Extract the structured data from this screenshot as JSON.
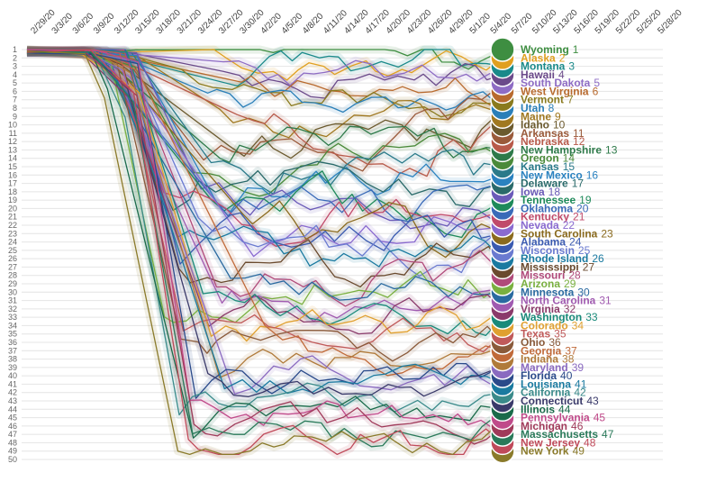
{
  "chart_data": {
    "type": "line",
    "title": "",
    "xlabel": "",
    "ylabel": "",
    "ylim": [
      1,
      50
    ],
    "x_ticks": [
      "2/29/20",
      "3/3/20",
      "3/6/20",
      "3/9/20",
      "3/12/20",
      "3/15/20",
      "3/18/20",
      "3/21/20",
      "3/24/20",
      "3/27/20",
      "3/30/20",
      "4/2/20",
      "4/5/20",
      "4/8/20",
      "4/11/20",
      "4/14/20",
      "4/17/20",
      "4/20/20",
      "4/23/20",
      "4/26/20",
      "4/29/20",
      "5/1/20",
      "5/4/20",
      "5/7/20",
      "5/10/20",
      "5/13/20",
      "5/16/20",
      "5/19/20",
      "5/22/20",
      "5/25/20",
      "5/28/20"
    ],
    "y_ticks": [
      1,
      2,
      3,
      4,
      5,
      6,
      7,
      8,
      9,
      10,
      11,
      12,
      13,
      14,
      15,
      16,
      17,
      18,
      19,
      20,
      21,
      22,
      23,
      24,
      25,
      26,
      27,
      28,
      29,
      30,
      31,
      32,
      33,
      34,
      35,
      36,
      37,
      38,
      39,
      40,
      41,
      42,
      43,
      44,
      45,
      46,
      47,
      48,
      49,
      50
    ],
    "series": [
      {
        "name": "Wyoming",
        "rank": 1,
        "color": "#3e8e41"
      },
      {
        "name": "Alaska",
        "rank": 2,
        "color": "#e0a020"
      },
      {
        "name": "Montana",
        "rank": 3,
        "color": "#1a8a8a"
      },
      {
        "name": "Hawaii",
        "rank": 4,
        "color": "#6b4a8a"
      },
      {
        "name": "South Dakota",
        "rank": 5,
        "color": "#8e6cc4"
      },
      {
        "name": "West Virginia",
        "rank": 6,
        "color": "#b86a2e"
      },
      {
        "name": "Vermont",
        "rank": 7,
        "color": "#8a7a1e"
      },
      {
        "name": "Utah",
        "rank": 8,
        "color": "#2a7fb8"
      },
      {
        "name": "Maine",
        "rank": 9,
        "color": "#a07820"
      },
      {
        "name": "Idaho",
        "rank": 10,
        "color": "#6b5a2e"
      },
      {
        "name": "Arkansas",
        "rank": 11,
        "color": "#9a5a3a"
      },
      {
        "name": "Nebraska",
        "rank": 12,
        "color": "#b85a4a"
      },
      {
        "name": "New Hampshire",
        "rank": 13,
        "color": "#2e7a4a"
      },
      {
        "name": "Oregon",
        "rank": 14,
        "color": "#4a8a3a"
      },
      {
        "name": "Kansas",
        "rank": 15,
        "color": "#2a7a8a"
      },
      {
        "name": "New Mexico",
        "rank": 16,
        "color": "#2a82c0"
      },
      {
        "name": "Delaware",
        "rank": 17,
        "color": "#2a6a6a"
      },
      {
        "name": "Iowa",
        "rank": 18,
        "color": "#6a5ab8"
      },
      {
        "name": "Tennessee",
        "rank": 19,
        "color": "#1e8a5a"
      },
      {
        "name": "Oklahoma",
        "rank": 20,
        "color": "#3a6ab8"
      },
      {
        "name": "Kentucky",
        "rank": 21,
        "color": "#c04a6a"
      },
      {
        "name": "Nevada",
        "rank": 22,
        "color": "#8a6ad0"
      },
      {
        "name": "South Carolina",
        "rank": 23,
        "color": "#8a6a1e"
      },
      {
        "name": "Alabama",
        "rank": 24,
        "color": "#3a5ab0"
      },
      {
        "name": "Wisconsin",
        "rank": 25,
        "color": "#6a7ad0"
      },
      {
        "name": "Rhode Island",
        "rank": 26,
        "color": "#1a7aa0"
      },
      {
        "name": "Mississippi",
        "rank": 27,
        "color": "#6a4a2e"
      },
      {
        "name": "Missouri",
        "rank": 28,
        "color": "#b04a7a"
      },
      {
        "name": "Arizona",
        "rank": 29,
        "color": "#7ab040"
      },
      {
        "name": "Minnesota",
        "rank": 30,
        "color": "#2a6aa0"
      },
      {
        "name": "North Carolina",
        "rank": 31,
        "color": "#a05ab0"
      },
      {
        "name": "Virginia",
        "rank": 32,
        "color": "#8a3a6a"
      },
      {
        "name": "Washington",
        "rank": 33,
        "color": "#1a8a7a"
      },
      {
        "name": "Colorado",
        "rank": 34,
        "color": "#e0a030"
      },
      {
        "name": "Texas",
        "rank": 35,
        "color": "#c05a5a"
      },
      {
        "name": "Ohio",
        "rank": 36,
        "color": "#8a5a3a"
      },
      {
        "name": "Georgia",
        "rank": 37,
        "color": "#c06a3a"
      },
      {
        "name": "Indiana",
        "rank": 38,
        "color": "#b07a3a"
      },
      {
        "name": "Maryland",
        "rank": 39,
        "color": "#8a6ac0"
      },
      {
        "name": "Florida",
        "rank": 40,
        "color": "#2a4a8a"
      },
      {
        "name": "Louisiana",
        "rank": 41,
        "color": "#1a7aa0"
      },
      {
        "name": "California",
        "rank": 42,
        "color": "#3a8a8a"
      },
      {
        "name": "Connecticut",
        "rank": 43,
        "color": "#3a3a6a"
      },
      {
        "name": "Illinois",
        "rank": 44,
        "color": "#1a6a4a"
      },
      {
        "name": "Pennsylvania",
        "rank": 45,
        "color": "#c04a8a"
      },
      {
        "name": "Michigan",
        "rank": 46,
        "color": "#a03a5a"
      },
      {
        "name": "Massachusetts",
        "rank": 47,
        "color": "#2a7a5a"
      },
      {
        "name": "New Jersey",
        "rank": 48,
        "color": "#c04a5a"
      },
      {
        "name": "New York",
        "rank": 49,
        "color": "#8a7a2a"
      }
    ]
  }
}
